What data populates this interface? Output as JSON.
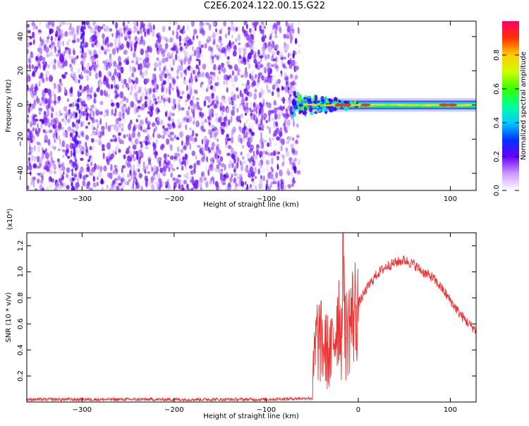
{
  "title": "C2E6.2024.122.00.15.G22",
  "chart_data": [
    {
      "type": "heatmap",
      "xlabel": "Height of straight line (km)",
      "ylabel": "Frequency (Hz)",
      "xlim": [
        -360,
        128
      ],
      "ylim": [
        -50,
        49
      ],
      "xticks": [
        -300,
        -200,
        -100,
        0,
        100
      ],
      "yticks": [
        -40,
        -20,
        0,
        20,
        40
      ],
      "colorbar": {
        "label": "Normalized spectral amplitude",
        "range": [
          0,
          1
        ],
        "ticks": [
          0.0,
          0.2,
          0.4,
          0.6,
          0.8
        ]
      },
      "features": {
        "noise_region_height_km": [
          -360,
          -72
        ],
        "signal_ridge_frequency_hz": 0,
        "signal_region_height_km": [
          -72,
          128
        ],
        "peak_amplitude_heights_km": [
          -20,
          -13,
          8,
          93,
          102
        ]
      }
    },
    {
      "type": "line",
      "xlabel": "Height of straight line (km)",
      "ylabel": "SNR (10 * v/v)",
      "y_multiplier": "(x10⁴)",
      "xlim": [
        -360,
        128
      ],
      "ylim": [
        0,
        1.3
      ],
      "xticks": [
        -300,
        -200,
        -100,
        0,
        100
      ],
      "yticks": [
        0.2,
        0.4,
        0.6,
        0.8,
        1.0,
        1.2
      ],
      "series": [
        {
          "color": "#ef3333",
          "points": [
            [
              -360,
              0.02
            ],
            [
              -100,
              0.02
            ],
            [
              -50,
              0.03
            ],
            [
              -48,
              0.3
            ],
            [
              -45,
              0.5
            ],
            [
              -40,
              0.45
            ],
            [
              -35,
              0.4
            ],
            [
              -30,
              0.35
            ],
            [
              -25,
              0.55
            ],
            [
              -22,
              0.7
            ],
            [
              -20,
              0.65
            ],
            [
              -18,
              0.5
            ],
            [
              -16,
              1.25
            ],
            [
              -14,
              0.5
            ],
            [
              -10,
              0.6
            ],
            [
              -5,
              0.68
            ],
            [
              0,
              0.75
            ],
            [
              10,
              0.88
            ],
            [
              20,
              0.98
            ],
            [
              30,
              1.04
            ],
            [
              40,
              1.07
            ],
            [
              50,
              1.09
            ],
            [
              60,
              1.06
            ],
            [
              70,
              1.0
            ],
            [
              80,
              0.96
            ],
            [
              90,
              0.88
            ],
            [
              100,
              0.78
            ],
            [
              110,
              0.68
            ],
            [
              120,
              0.6
            ],
            [
              128,
              0.55
            ]
          ]
        }
      ]
    }
  ]
}
